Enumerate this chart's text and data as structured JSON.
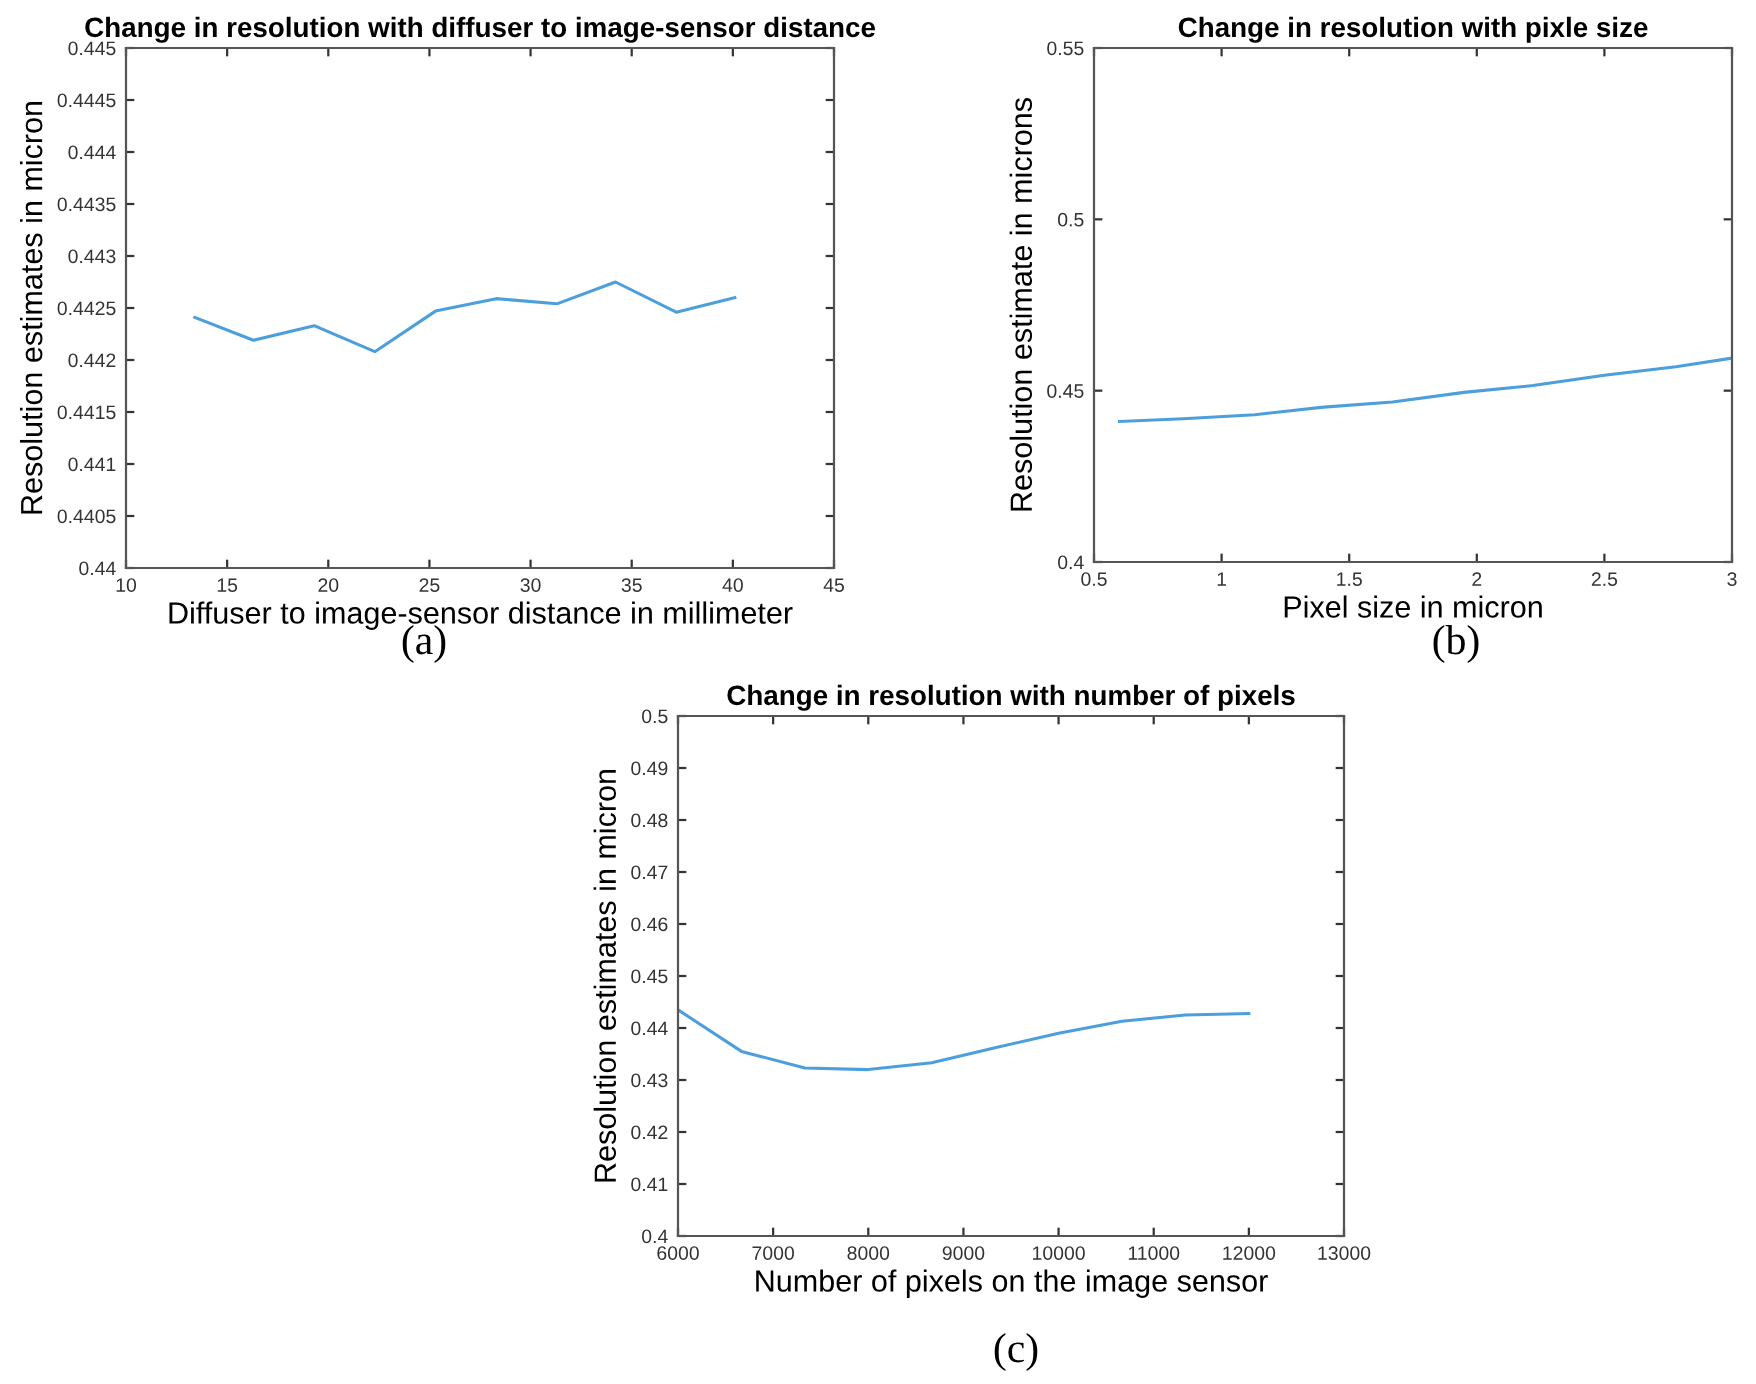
{
  "chart_data": [
    {
      "type": "line",
      "title": "Change in resolution with diffuser to image-sensor distance",
      "xlabel": "Diffuser to image-sensor distance in millimeter",
      "ylabel": "Resolution estimates in micron",
      "annotations": [
        "(a)"
      ],
      "x": [
        13.4,
        16.3,
        19.3,
        22.3,
        25.3,
        28.3,
        31.3,
        34.2,
        37.2,
        40.1
      ],
      "series": [
        {
          "color": "#4d9fdb",
          "values": [
            0.44241,
            0.44219,
            0.44233,
            0.44208,
            0.44247,
            0.44259,
            0.44254,
            0.44275,
            0.44246,
            0.4426
          ]
        }
      ],
      "xlim": [
        10,
        45
      ],
      "xticks": [
        10,
        15,
        20,
        25,
        30,
        35,
        40,
        45
      ],
      "ylim": [
        0.44,
        0.445
      ],
      "yticks": [
        0.44,
        0.4405,
        0.441,
        0.4415,
        0.442,
        0.4425,
        0.443,
        0.4435,
        0.444,
        0.4445,
        0.445
      ],
      "grid": false,
      "legend": false
    },
    {
      "type": "line",
      "title": "Change in resolution with pixle size",
      "xlabel": "Pixel size in micron",
      "ylabel": "Resolution estimate in microns",
      "annotations": [
        "(b)"
      ],
      "x": [
        0.6,
        0.85,
        1.13,
        1.4,
        1.67,
        1.95,
        2.22,
        2.5,
        2.78,
        3.0
      ],
      "series": [
        {
          "color": "#4d9fdb",
          "values": [
            0.441,
            0.4418,
            0.443,
            0.4452,
            0.4467,
            0.4495,
            0.4515,
            0.4545,
            0.457,
            0.4595
          ]
        }
      ],
      "xlim": [
        0.5,
        3
      ],
      "xticks": [
        0.5,
        1,
        1.5,
        2,
        2.5,
        3
      ],
      "ylim": [
        0.4,
        0.55
      ],
      "yticks": [
        0.4,
        0.45,
        0.5,
        0.55
      ],
      "grid": false,
      "legend": false
    },
    {
      "type": "line",
      "title": "Change in resolution with number of pixels",
      "xlabel": "Number of pixels on the image sensor",
      "ylabel": "Resolution estimates in micron",
      "annotations": [
        "(c)"
      ],
      "x": [
        6000,
        6667,
        7333,
        8000,
        8667,
        9333,
        10000,
        10667,
        11333,
        12000
      ],
      "series": [
        {
          "color": "#4d9fdb",
          "values": [
            0.4435,
            0.4355,
            0.4323,
            0.432,
            0.4333,
            0.4362,
            0.439,
            0.4413,
            0.4425,
            0.4428
          ]
        }
      ],
      "xlim": [
        6000,
        13000
      ],
      "xticks": [
        6000,
        7000,
        8000,
        9000,
        10000,
        11000,
        12000,
        13000
      ],
      "ylim": [
        0.4,
        0.5
      ],
      "yticks": [
        0.4,
        0.41,
        0.42,
        0.43,
        0.44,
        0.45,
        0.46,
        0.47,
        0.48,
        0.49,
        0.5
      ],
      "grid": false,
      "legend": false
    }
  ]
}
